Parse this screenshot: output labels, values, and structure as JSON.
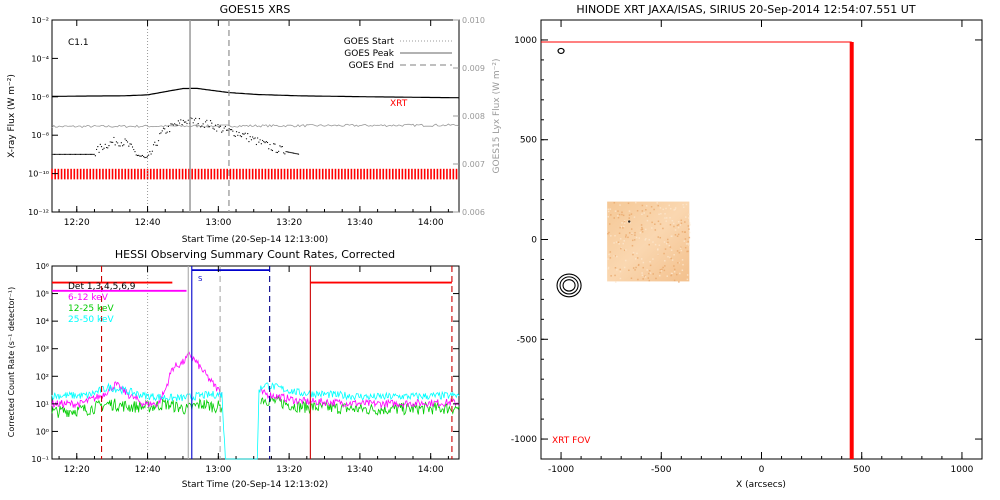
{
  "chart_data": [
    {
      "type": "line",
      "title": "GOES15 XRS",
      "xlabel": "Start Time (20-Sep-14 12:13:00)",
      "ylabel": "X-ray Flux (W m⁻²)",
      "y2label": "GOES15 Lyx Flux (W m⁻²)",
      "x_unit": "minutes after 12:13:00",
      "xlim": [
        0,
        115
      ],
      "ylim_log": [
        -12,
        -2
      ],
      "y2lim": [
        0.006,
        0.01
      ],
      "x_tick_labels": [
        "12:20",
        "12:40",
        "13:00",
        "13:20",
        "13:40",
        "14:00"
      ],
      "x_ticks": [
        7,
        27,
        47,
        67,
        87,
        107
      ],
      "y_tick_labels": [
        "10⁻²",
        "10⁻⁴",
        "10⁻⁶",
        "10⁻⁸",
        "10⁻¹⁰",
        "10⁻¹²"
      ],
      "y_ticks_log": [
        -2,
        -4,
        -6,
        -8,
        -10,
        -12
      ],
      "y2_tick_labels": [
        "0.010",
        "0.009",
        "0.008",
        "0.007",
        "0.006"
      ],
      "y2_ticks": [
        0.01,
        0.009,
        0.008,
        0.007,
        0.006
      ],
      "class_label": "C1.1",
      "series_label": "XRT",
      "legend": [
        {
          "label": "GOES Start",
          "style": "dotted"
        },
        {
          "label": "GOES Peak",
          "style": "solid"
        },
        {
          "label": "GOES End",
          "style": "dashed"
        }
      ],
      "markers": {
        "start": 27,
        "peak": 39,
        "end": 50
      },
      "series": [
        {
          "name": "long",
          "color": "#000000",
          "log_values": [
            [
              0,
              -5.98
            ],
            [
              10,
              -5.96
            ],
            [
              20,
              -5.95
            ],
            [
              27,
              -5.9
            ],
            [
              33,
              -5.7
            ],
            [
              37,
              -5.57
            ],
            [
              41,
              -5.56
            ],
            [
              45,
              -5.66
            ],
            [
              50,
              -5.78
            ],
            [
              58,
              -5.88
            ],
            [
              70,
              -5.95
            ],
            [
              90,
              -6.0
            ],
            [
              110,
              -6.04
            ],
            [
              115,
              -6.05
            ]
          ]
        },
        {
          "name": "short",
          "color": "#000000",
          "style": "dotted",
          "log_values": [
            [
              0,
              -9.0
            ],
            [
              12,
              -9.0
            ],
            [
              14,
              -8.6
            ],
            [
              18,
              -8.3
            ],
            [
              21,
              -8.4
            ],
            [
              24,
              -9.0
            ],
            [
              27,
              -9.3
            ],
            [
              29,
              -8.6
            ],
            [
              31,
              -7.9
            ],
            [
              34,
              -7.55
            ],
            [
              38,
              -7.25
            ],
            [
              41,
              -7.3
            ],
            [
              45,
              -7.45
            ],
            [
              49,
              -7.75
            ],
            [
              53,
              -7.9
            ],
            [
              57,
              -8.25
            ],
            [
              61,
              -8.55
            ],
            [
              66,
              -8.85
            ],
            [
              70,
              -9.0
            ]
          ]
        },
        {
          "name": "lyman",
          "color": "#999999",
          "y2_values": [
            [
              0,
              0.00778
            ],
            [
              115,
              0.00781
            ]
          ]
        }
      ],
      "xrt_exposure_bar": {
        "log_bottom": -10.3,
        "log_top": -9.75,
        "color": "#ff0000"
      }
    },
    {
      "type": "line",
      "title": "HESSI Observing Summary Count Rates, Corrected",
      "xlabel": "Start Time (20-Sep-14 12:13:02)",
      "ylabel": "Corrected Count Rate (s⁻¹ detector⁻¹)",
      "xlim": [
        0,
        115
      ],
      "ylim_log": [
        -1,
        6
      ],
      "x_tick_labels": [
        "12:20",
        "12:40",
        "13:00",
        "13:20",
        "13:40",
        "14:00"
      ],
      "x_ticks": [
        7,
        27,
        47,
        67,
        87,
        107
      ],
      "y_tick_labels": [
        "10⁶",
        "10⁵",
        "10⁴",
        "10³",
        "10²",
        "10¹",
        "10⁰",
        "10⁻¹"
      ],
      "y_ticks_log": [
        6,
        5,
        4,
        3,
        2,
        1,
        0,
        -1
      ],
      "legend": [
        {
          "label": "Det 1,3,4,5,6,9",
          "color": "#000000"
        },
        {
          "label": "6-12 keV",
          "color": "#ff00ff"
        },
        {
          "label": "12-25 keV",
          "color": "#00cc00"
        },
        {
          "label": "25-50 keV",
          "color": "#00ffff"
        }
      ],
      "s_flag": "S",
      "series": [
        {
          "name": "6-12 keV",
          "color": "#ff00ff",
          "log_values": [
            [
              0,
              1.0
            ],
            [
              8,
              1.0
            ],
            [
              14,
              1.3
            ],
            [
              18,
              1.7
            ],
            [
              22,
              1.3
            ],
            [
              26,
              1.0
            ],
            [
              30,
              1.0
            ],
            [
              32,
              1.5
            ],
            [
              34,
              2.3
            ],
            [
              37,
              2.5
            ],
            [
              39,
              2.8
            ],
            [
              42,
              2.3
            ],
            [
              45,
              1.8
            ],
            [
              47,
              1.5
            ],
            [
              48,
              1.4
            ]
          ]
        },
        {
          "name": "12-25 keV",
          "color": "#00cc00",
          "log_values": [
            [
              0,
              0.7
            ],
            [
              10,
              0.8
            ],
            [
              16,
              1.0
            ],
            [
              22,
              0.9
            ],
            [
              28,
              0.9
            ],
            [
              32,
              1.0
            ],
            [
              38,
              0.8
            ],
            [
              42,
              1.0
            ],
            [
              46,
              0.9
            ],
            [
              48,
              0.9
            ]
          ]
        },
        {
          "name": "25-50 keV",
          "color": "#00ffff",
          "log_values": [
            [
              0,
              1.3
            ],
            [
              10,
              1.3
            ],
            [
              16,
              1.6
            ],
            [
              20,
              1.5
            ],
            [
              26,
              1.3
            ],
            [
              30,
              1.25
            ],
            [
              36,
              1.2
            ],
            [
              42,
              1.3
            ],
            [
              48,
              1.35
            ],
            [
              49,
              -1
            ],
            [
              58,
              -1
            ],
            [
              58.5,
              1.5
            ],
            [
              60,
              1.7
            ],
            [
              70,
              1.4
            ],
            [
              90,
              1.25
            ],
            [
              115,
              1.3
            ]
          ]
        },
        {
          "name": "6-12 keV late",
          "color": "#ff00ff",
          "log_values": [
            [
              59,
              1.4
            ],
            [
              70,
              1.1
            ],
            [
              90,
              1.0
            ],
            [
              115,
              1.05
            ]
          ]
        },
        {
          "name": "12-25 keV late",
          "color": "#00cc00",
          "log_values": [
            [
              59,
              1.2
            ],
            [
              70,
              0.9
            ],
            [
              90,
              0.8
            ],
            [
              115,
              0.85
            ]
          ]
        }
      ],
      "flags": [
        {
          "color": "#ff0000",
          "segments": [
            [
              0,
              34,
              5.4
            ],
            [
              73,
              113,
              5.4
            ]
          ]
        },
        {
          "color": "#ff00ff",
          "segments": [
            [
              0,
              38,
              5.1
            ]
          ]
        },
        {
          "color": "#0000cc",
          "segments": [
            [
              39.5,
              61.5,
              5.85
            ]
          ]
        }
      ],
      "vlines": [
        {
          "x": 14,
          "color": "#cc0000",
          "style": "dashed"
        },
        {
          "x": 27,
          "color": "#aaaaaa",
          "style": "dotted"
        },
        {
          "x": 38.5,
          "color": "#aaaaaa",
          "style": "solid"
        },
        {
          "x": 39.5,
          "color": "#0000cc",
          "style": "solid"
        },
        {
          "x": 47.5,
          "color": "#aaaaaa",
          "style": "dashed"
        },
        {
          "x": 61.5,
          "color": "#000088",
          "style": "dashed"
        },
        {
          "x": 73,
          "color": "#cc0000",
          "style": "solid"
        },
        {
          "x": 113,
          "color": "#cc0000",
          "style": "dashed"
        }
      ]
    },
    {
      "type": "map",
      "title": "HINODE XRT JAXA/ISAS, SIRIUS 20-Sep-2014 12:54:07.551 UT",
      "xlabel": "X (arcsecs)",
      "xlim": [
        -1100,
        1100
      ],
      "ylim": [
        -1100,
        1100
      ],
      "x_tick_labels": [
        "-1000",
        "-500",
        "0",
        "500",
        "1000"
      ],
      "x_ticks": [
        -1000,
        -500,
        0,
        500,
        1000
      ],
      "y_tick_labels": [
        "1000",
        "500",
        "0",
        "-500",
        "-1000"
      ],
      "y_ticks": [
        1000,
        500,
        0,
        -500,
        -1000
      ],
      "fov_label": "XRT FOV",
      "fov_box": {
        "x0": -1100,
        "x1": 450,
        "y0": -1100,
        "y1": 990,
        "color": "#ff0000"
      },
      "image_patch": {
        "x0": -770,
        "x1": -360,
        "y0": -210,
        "y1": 190
      },
      "contour_center": [
        -960,
        -230
      ],
      "contour_radii": [
        30,
        45,
        60
      ],
      "small_marker": [
        -1000,
        945
      ]
    }
  ]
}
